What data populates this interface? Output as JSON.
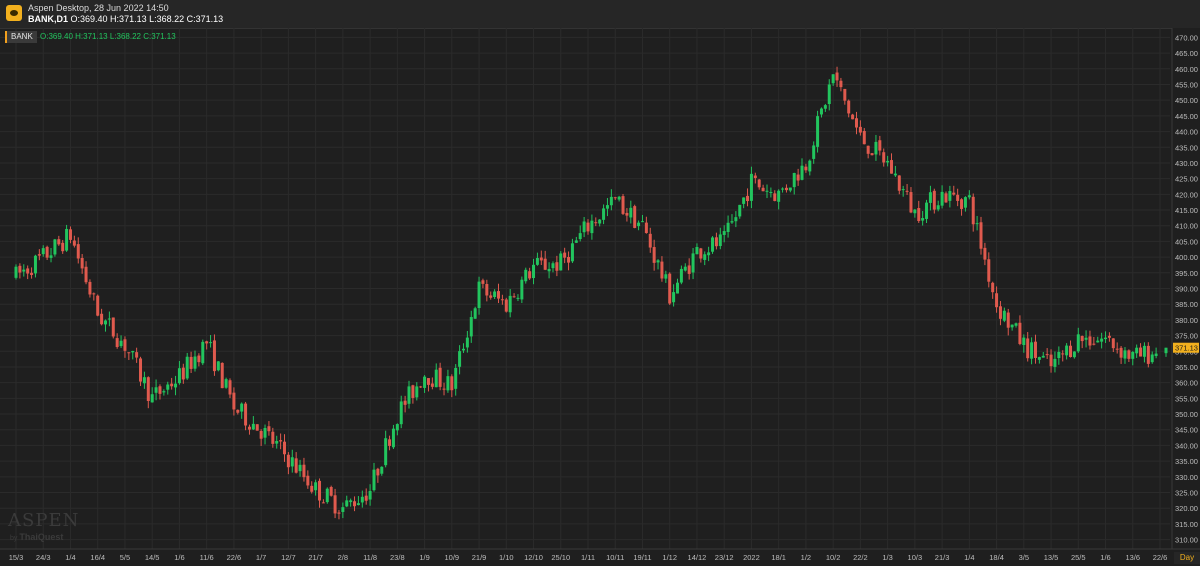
{
  "window": {
    "title": "Aspen Desktop, 28 Jun 2022 14:50",
    "symbol": "BANK,D1",
    "ohlc_text": "O:369.40 H:371.13 L:368.22 C:371.13"
  },
  "legend": {
    "symbol": "BANK",
    "ohlc_text": "O:369.40  H:371.13  L:368.22  C:371.13"
  },
  "watermark": {
    "brand": "ASPEN",
    "by": "by",
    "vendor": "ThaiQuest"
  },
  "timeframe": "Day",
  "colors": {
    "up": "#22c55e",
    "down": "#e05a4e",
    "background": "#1f1f1f",
    "grid": "#2b2b2b",
    "last_price": "#f2b01e"
  },
  "chart_data": {
    "type": "candlestick",
    "symbol": "BANK",
    "interval": "D1",
    "ylim": [
      307,
      473
    ],
    "y_ticks": [
      "310.00",
      "315.00",
      "320.00",
      "325.00",
      "330.00",
      "335.00",
      "340.00",
      "345.00",
      "350.00",
      "355.00",
      "360.00",
      "365.00",
      "370.00",
      "375.00",
      "380.00",
      "385.00",
      "390.00",
      "395.00",
      "400.00",
      "405.00",
      "410.00",
      "415.00",
      "420.00",
      "425.00",
      "430.00",
      "435.00",
      "440.00",
      "445.00",
      "450.00",
      "455.00",
      "460.00",
      "465.00",
      "470.00"
    ],
    "x_ticks": [
      "15/3",
      "24/3",
      "1/4",
      "16/4",
      "5/5",
      "14/5",
      "1/6",
      "11/6",
      "22/6",
      "1/7",
      "12/7",
      "21/7",
      "2/8",
      "11/8",
      "23/8",
      "1/9",
      "10/9",
      "21/9",
      "1/10",
      "12/10",
      "25/10",
      "1/11",
      "10/11",
      "19/11",
      "1/12",
      "14/12",
      "23/12",
      "2022",
      "18/1",
      "1/2",
      "10/2",
      "22/2",
      "1/3",
      "10/3",
      "21/3",
      "1/4",
      "18/4",
      "3/5",
      "13/5",
      "25/5",
      "1/6",
      "13/6",
      "22/6"
    ],
    "anchors": [
      {
        "x": "15/3",
        "y": 394
      },
      {
        "x": "24/3",
        "y": 400
      },
      {
        "x": "1/4",
        "y": 407
      },
      {
        "x": "16/4",
        "y": 382
      },
      {
        "x": "5/5",
        "y": 372
      },
      {
        "x": "14/5",
        "y": 355
      },
      {
        "x": "1/6",
        "y": 362
      },
      {
        "x": "11/6",
        "y": 373
      },
      {
        "x": "22/6",
        "y": 352
      },
      {
        "x": "1/7",
        "y": 345
      },
      {
        "x": "12/7",
        "y": 336
      },
      {
        "x": "21/7",
        "y": 326
      },
      {
        "x": "2/8",
        "y": 320
      },
      {
        "x": "11/8",
        "y": 326
      },
      {
        "x": "23/8",
        "y": 350
      },
      {
        "x": "1/9",
        "y": 363
      },
      {
        "x": "10/9",
        "y": 359
      },
      {
        "x": "21/9",
        "y": 390
      },
      {
        "x": "1/10",
        "y": 385
      },
      {
        "x": "12/10",
        "y": 397
      },
      {
        "x": "25/10",
        "y": 398
      },
      {
        "x": "1/11",
        "y": 410
      },
      {
        "x": "10/11",
        "y": 418
      },
      {
        "x": "19/11",
        "y": 410
      },
      {
        "x": "1/12",
        "y": 388
      },
      {
        "x": "14/12",
        "y": 402
      },
      {
        "x": "23/12",
        "y": 405
      },
      {
        "x": "2022",
        "y": 424
      },
      {
        "x": "18/1",
        "y": 420
      },
      {
        "x": "1/2",
        "y": 430
      },
      {
        "x": "10/2",
        "y": 458
      },
      {
        "x": "22/2",
        "y": 438
      },
      {
        "x": "1/3",
        "y": 430
      },
      {
        "x": "10/3",
        "y": 414
      },
      {
        "x": "21/3",
        "y": 420
      },
      {
        "x": "1/4",
        "y": 418
      },
      {
        "x": "18/4",
        "y": 385
      },
      {
        "x": "3/5",
        "y": 372
      },
      {
        "x": "13/5",
        "y": 365
      },
      {
        "x": "25/5",
        "y": 374
      },
      {
        "x": "1/6",
        "y": 374
      },
      {
        "x": "13/6",
        "y": 368
      },
      {
        "x": "22/6",
        "y": 370
      }
    ],
    "last": {
      "open": 369.4,
      "high": 371.13,
      "low": 368.22,
      "close": 371.13,
      "label": "371.13"
    },
    "grid": true
  }
}
